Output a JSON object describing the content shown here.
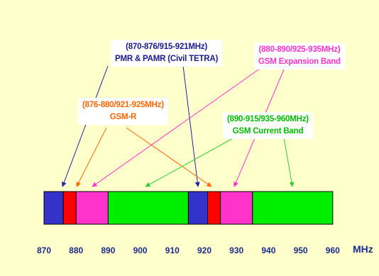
{
  "diagram": {
    "axis": {
      "min": 865,
      "max": 965,
      "ticks": [
        870,
        880,
        890,
        900,
        910,
        920,
        930,
        940,
        950,
        960
      ],
      "unit": "MHz"
    },
    "bands": [
      {
        "id": "pmr-low",
        "start": 870,
        "end": 876,
        "color": "#3333cc"
      },
      {
        "id": "gsmr-low",
        "start": 876,
        "end": 880,
        "color": "#ff0000"
      },
      {
        "id": "ext-low",
        "start": 880,
        "end": 890,
        "color": "#ff33cc"
      },
      {
        "id": "gsm-low",
        "start": 890,
        "end": 915,
        "color": "#00ee00"
      },
      {
        "id": "pmr-high",
        "start": 915,
        "end": 921,
        "color": "#3333cc"
      },
      {
        "id": "gsmr-high",
        "start": 921,
        "end": 925,
        "color": "#ff0000"
      },
      {
        "id": "ext-high",
        "start": 925,
        "end": 935,
        "color": "#ff33cc"
      },
      {
        "id": "gsm-high",
        "start": 935,
        "end": 960,
        "color": "#00ee00"
      }
    ],
    "labels": [
      {
        "id": "pmr",
        "line1": "(870-876/915-921MHz)",
        "line2": "PMR & PAMR (Civil TETRA)",
        "color": "#1a1a8c"
      },
      {
        "id": "ext",
        "line1": "(880-890/925-935MHz)",
        "line2": "GSM Expansion Band",
        "color": "#ff33cc"
      },
      {
        "id": "gsmr",
        "line1": "(876-880/921-925MHz)",
        "line2": "GSM-R",
        "color": "#ff6600"
      },
      {
        "id": "gsm",
        "line1": "(890-915/935-960MHz)",
        "line2": "GSM Current Band",
        "color": "#00bb00"
      }
    ]
  }
}
